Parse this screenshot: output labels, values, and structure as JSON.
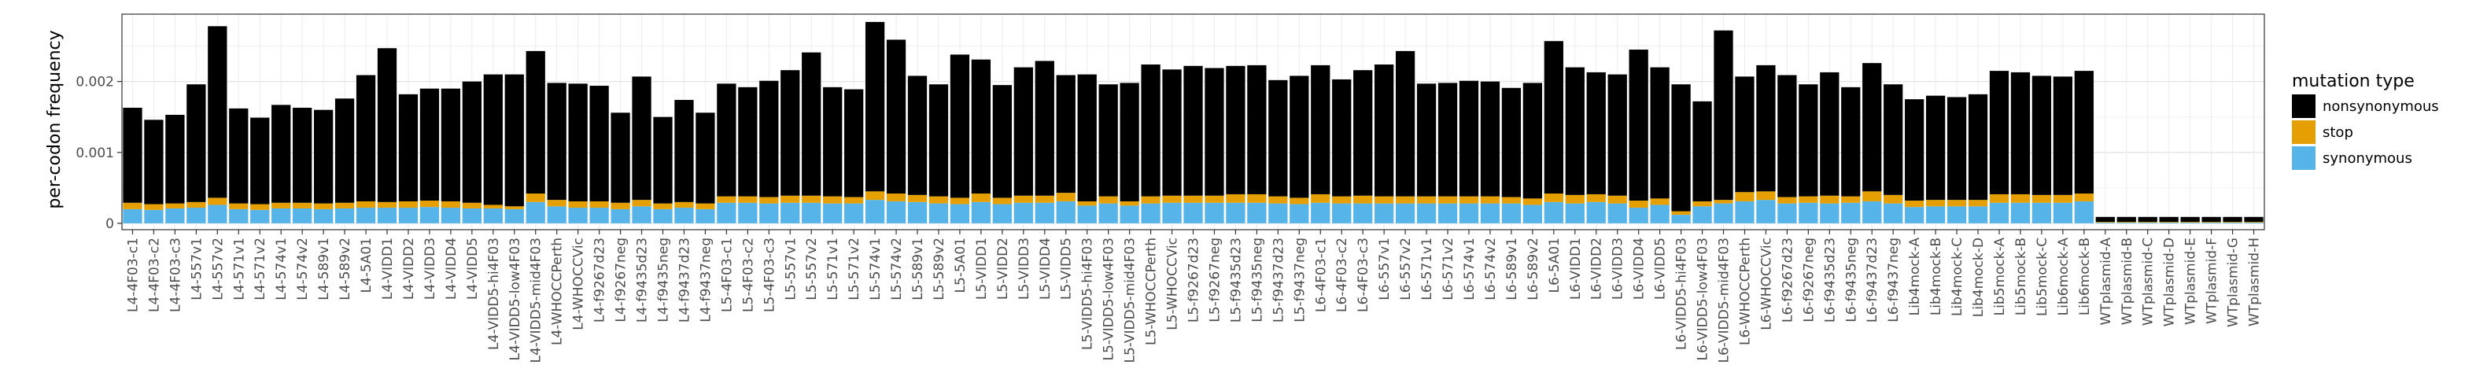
{
  "chart_data": {
    "type": "bar",
    "stacked": true,
    "title": "",
    "xlabel": "",
    "ylabel": "per-codon frequency",
    "ylim": [
      -9e-05,
      0.00295
    ],
    "yticks": [
      0,
      0.001,
      0.002
    ],
    "ytick_labels": [
      "0",
      "0.001",
      "0.002"
    ],
    "grid": true,
    "legend": {
      "title": "mutation type",
      "position": "right"
    },
    "categories": [
      "L4-4F03-c1",
      "L4-4F03-c2",
      "L4-4F03-c3",
      "L4-557v1",
      "L4-557v2",
      "L4-571v1",
      "L4-571v2",
      "L4-574v1",
      "L4-574v2",
      "L4-589v1",
      "L4-589v2",
      "L4-5A01",
      "L4-VIDD1",
      "L4-VIDD2",
      "L4-VIDD3",
      "L4-VIDD4",
      "L4-VIDD5",
      "L4-VIDD5-hi4F03",
      "L4-VIDD5-low4F03",
      "L4-VIDD5-mid4F03",
      "L4-WHOCCPerth",
      "L4-WHOCCVic",
      "L4-f9267d23",
      "L4-f9267neg",
      "L4-f9435d23",
      "L4-f9435neg",
      "L4-f9437d23",
      "L4-f9437neg",
      "L5-4F03-c1",
      "L5-4F03-c2",
      "L5-4F03-c3",
      "L5-557v1",
      "L5-557v2",
      "L5-571v1",
      "L5-571v2",
      "L5-574v1",
      "L5-574v2",
      "L5-589v1",
      "L5-589v2",
      "L5-5A01",
      "L5-VIDD1",
      "L5-VIDD2",
      "L5-VIDD3",
      "L5-VIDD4",
      "L5-VIDD5",
      "L5-VIDD5-hi4F03",
      "L5-VIDD5-low4F03",
      "L5-VIDD5-mid4F03",
      "L5-WHOCCPerth",
      "L5-WHOCCVic",
      "L5-f9267d23",
      "L5-f9267neg",
      "L5-f9435d23",
      "L5-f9435neg",
      "L5-f9437d23",
      "L5-f9437neg",
      "L6-4F03-c1",
      "L6-4F03-c2",
      "L6-4F03-c3",
      "L6-557v1",
      "L6-557v2",
      "L6-571v1",
      "L6-571v2",
      "L6-574v1",
      "L6-574v2",
      "L6-589v1",
      "L6-589v2",
      "L6-5A01",
      "L6-VIDD1",
      "L6-VIDD2",
      "L6-VIDD3",
      "L6-VIDD4",
      "L6-VIDD5",
      "L6-VIDD5-hi4F03",
      "L6-VIDD5-low4F03",
      "L6-VIDD5-mid4F03",
      "L6-WHOCCPerth",
      "L6-WHOCCVic",
      "L6-f9267d23",
      "L6-f9267neg",
      "L6-f9435d23",
      "L6-f9435neg",
      "L6-f9437d23",
      "L6-f9437neg",
      "Lib4mock-A",
      "Lib4mock-B",
      "Lib4mock-C",
      "Lib4mock-D",
      "Lib5mock-A",
      "Lib5mock-B",
      "Lib5mock-C",
      "Lib6mock-A",
      "Lib6mock-B",
      "WTplasmid-A",
      "WTplasmid-B",
      "WTplasmid-C",
      "WTplasmid-D",
      "WTplasmid-E",
      "WTplasmid-F",
      "WTplasmid-G",
      "WTplasmid-H"
    ],
    "series": [
      {
        "name": "synonymous",
        "color": "#56B4E9",
        "values": [
          0.0002,
          0.00019,
          0.00021,
          0.00022,
          0.00026,
          0.0002,
          0.00019,
          0.00021,
          0.00021,
          0.0002,
          0.00021,
          0.00022,
          0.00022,
          0.00022,
          0.00023,
          0.00022,
          0.00021,
          0.00021,
          0.0002,
          0.0003,
          0.00024,
          0.00022,
          0.00022,
          0.0002,
          0.00024,
          0.0002,
          0.00022,
          0.0002,
          0.00029,
          0.00029,
          0.00028,
          0.00029,
          0.00029,
          0.00028,
          0.00028,
          0.00033,
          0.00031,
          0.0003,
          0.00028,
          0.00027,
          0.0003,
          0.00027,
          0.00029,
          0.00029,
          0.00031,
          0.00025,
          0.00028,
          0.00025,
          0.00028,
          0.00029,
          0.00029,
          0.00029,
          0.00029,
          0.00029,
          0.00028,
          0.00027,
          0.00029,
          0.00028,
          0.00028,
          0.00028,
          0.00028,
          0.00028,
          0.00028,
          0.00028,
          0.00028,
          0.00028,
          0.00026,
          0.0003,
          0.00028,
          0.0003,
          0.00028,
          0.00022,
          0.00026,
          0.00012,
          0.00024,
          0.00028,
          0.00031,
          0.00033,
          0.00028,
          0.00029,
          0.00028,
          0.00029,
          0.00031,
          0.00028,
          0.00023,
          0.00024,
          0.00024,
          0.00024,
          0.00029,
          0.00029,
          0.00029,
          0.00029,
          0.00031,
          1e-05,
          1e-05,
          1e-05,
          1e-05,
          1e-05,
          1e-05,
          1e-05,
          1e-05
        ]
      },
      {
        "name": "stop",
        "color": "#E69F00",
        "values": [
          9e-05,
          8e-05,
          7e-05,
          8e-05,
          0.0001,
          8e-05,
          8e-05,
          8e-05,
          8e-05,
          8e-05,
          8e-05,
          9e-05,
          8e-05,
          9e-05,
          9e-05,
          9e-05,
          8e-05,
          5e-05,
          4e-05,
          0.00012,
          9e-05,
          9e-05,
          9e-05,
          9e-05,
          9e-05,
          8e-05,
          8e-05,
          8e-05,
          9e-05,
          9e-05,
          9e-05,
          0.0001,
          0.0001,
          0.0001,
          9e-05,
          0.00012,
          0.00011,
          0.0001,
          0.0001,
          9e-05,
          0.00012,
          9e-05,
          0.0001,
          0.0001,
          0.00012,
          6e-05,
          0.0001,
          6e-05,
          0.0001,
          0.0001,
          0.0001,
          0.0001,
          0.00012,
          0.00012,
          0.0001,
          9e-05,
          0.00012,
          0.0001,
          0.00011,
          0.0001,
          0.0001,
          0.0001,
          0.0001,
          0.0001,
          0.0001,
          9e-05,
          9e-05,
          0.00012,
          0.00012,
          0.00011,
          0.00011,
          0.0001,
          9e-05,
          5e-05,
          7e-05,
          5e-05,
          0.00013,
          0.00012,
          9e-05,
          9e-05,
          0.00011,
          9e-05,
          0.00014,
          0.00012,
          9e-05,
          9e-05,
          9e-05,
          9e-05,
          0.00012,
          0.00012,
          0.00011,
          0.00011,
          0.00011,
          1e-05,
          1e-05,
          1e-05,
          1e-05,
          1e-05,
          1e-05,
          1e-05,
          1e-05
        ]
      },
      {
        "name": "nonsynonymous",
        "color": "#000000",
        "values": [
          0.00134,
          0.00119,
          0.00125,
          0.00166,
          0.00242,
          0.00134,
          0.00122,
          0.00138,
          0.00134,
          0.00132,
          0.00147,
          0.00178,
          0.00217,
          0.00151,
          0.00158,
          0.00159,
          0.00171,
          0.00184,
          0.00186,
          0.00201,
          0.00165,
          0.00166,
          0.00163,
          0.00127,
          0.00174,
          0.00122,
          0.00144,
          0.00128,
          0.00159,
          0.00154,
          0.00164,
          0.00177,
          0.00202,
          0.00154,
          0.00152,
          0.00239,
          0.00217,
          0.00168,
          0.00158,
          0.00202,
          0.00189,
          0.00159,
          0.00181,
          0.0019,
          0.00166,
          0.00179,
          0.00158,
          0.00167,
          0.00186,
          0.00178,
          0.00183,
          0.0018,
          0.00181,
          0.00182,
          0.00164,
          0.00172,
          0.00182,
          0.00165,
          0.00177,
          0.00186,
          0.00205,
          0.00159,
          0.0016,
          0.00163,
          0.00162,
          0.00154,
          0.00163,
          0.00215,
          0.0018,
          0.00172,
          0.00171,
          0.00213,
          0.00185,
          0.00179,
          0.00141,
          0.00239,
          0.00163,
          0.00178,
          0.00172,
          0.00158,
          0.00174,
          0.00154,
          0.00181,
          0.00156,
          0.00143,
          0.00147,
          0.00145,
          0.00149,
          0.00174,
          0.00172,
          0.00168,
          0.00167,
          0.00173,
          7e-05,
          7e-05,
          7e-05,
          7e-05,
          7e-05,
          7e-05,
          7e-05,
          7e-05
        ]
      }
    ],
    "legend_order": [
      "nonsynonymous",
      "stop",
      "synonymous"
    ]
  }
}
